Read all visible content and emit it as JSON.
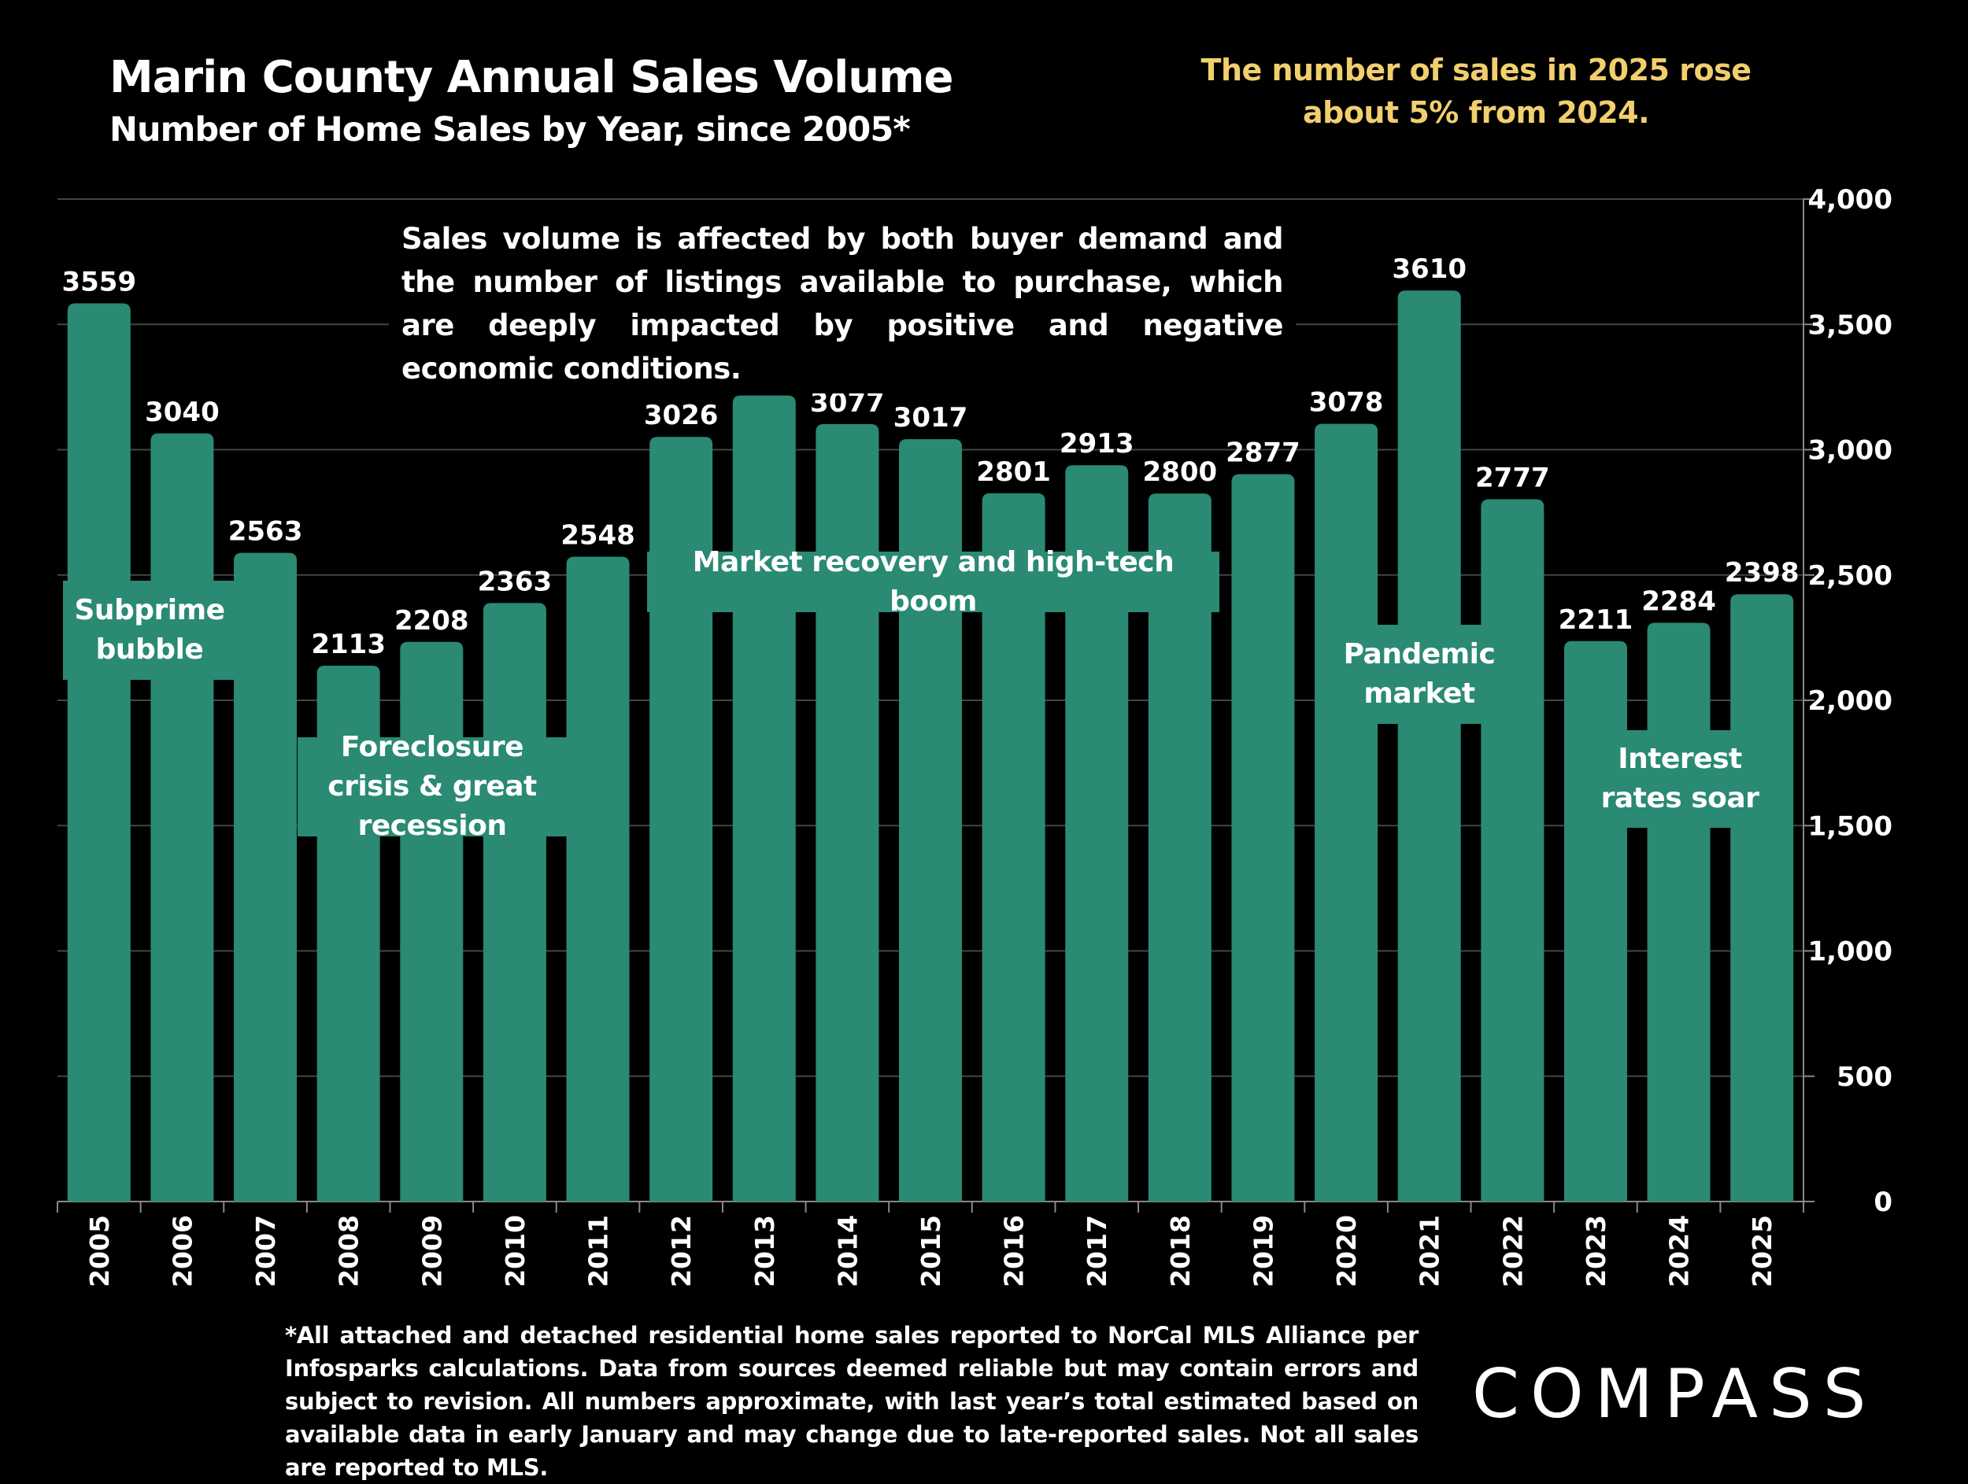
{
  "header": {
    "title": "Marin County Annual Sales Volume",
    "subtitle": "Number of Home Sales by Year, since 2005*",
    "note": "The number of sales in 2025 rose about 5% from 2024."
  },
  "annotation": "Sales volume is affected by both buyer demand and the number of listings available to purchase, which are deeply impacted by positive and negative economic conditions.",
  "eras": [
    {
      "label": "Subprime bubble"
    },
    {
      "label": "Foreclosure crisis & great recession"
    },
    {
      "label": "Market recovery and high-tech boom"
    },
    {
      "label": "Pandemic market"
    },
    {
      "label": "Interest rates soar"
    }
  ],
  "footnote": "*All attached and detached residential home sales reported to NorCal MLS Alliance per Infosparks calculations. Data from sources deemed reliable but may contain errors and subject to revision. All numbers approximate, with last year’s total estimated based on available data in early January and may change due to late-reported sales. Not all sales are reported to MLS.",
  "logo": "COMPASS",
  "colors": {
    "bar": "#2a8a74",
    "background": "#000000",
    "note": "#f2cf6e",
    "grid": "#444444"
  },
  "chart_data": {
    "type": "bar",
    "title": "Marin County Annual Sales Volume",
    "subtitle": "Number of Home Sales by Year, since 2005*",
    "categories": [
      "2005",
      "2006",
      "2007",
      "2008",
      "2009",
      "2010",
      "2011",
      "2012",
      "2013",
      "2014",
      "2015",
      "2016",
      "2017",
      "2018",
      "2019",
      "2020",
      "2021",
      "2022",
      "2023",
      "2024",
      "2025"
    ],
    "values": [
      3559,
      3040,
      2563,
      2113,
      2208,
      2363,
      2548,
      3026,
      3191,
      3077,
      3017,
      2801,
      2913,
      2800,
      2877,
      3078,
      3610,
      2777,
      2211,
      2284,
      2398
    ],
    "ylim": [
      0,
      4000
    ],
    "yticks": [
      "0",
      "500",
      "1,000",
      "1,500",
      "2,000",
      "2,500",
      "3,000",
      "3,500",
      "4,000"
    ],
    "y_axis_position": "right",
    "grid": true,
    "data_labels": true
  }
}
